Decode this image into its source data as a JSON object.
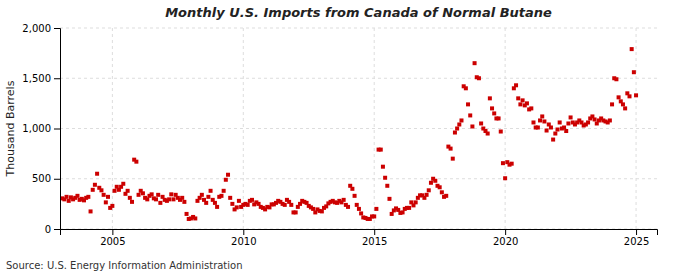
{
  "chart_data": {
    "type": "scatter",
    "title": "Monthly U.S. Imports from Canada of Normal Butane",
    "ylabel": "Thousand Barrels",
    "annotations": [
      "Source: U.S. Energy Information Administration"
    ],
    "color": "#cc0000",
    "marker": "square",
    "grid": true,
    "xlim": [
      2003.0,
      2025.8
    ],
    "xticks": [
      2005,
      2010,
      2015,
      2020,
      2025
    ],
    "ylim": [
      0,
      2000
    ],
    "yticks": [
      0,
      500,
      {
        "value": 1000,
        "label": "1,000"
      },
      {
        "value": 1500,
        "label": "1,500"
      },
      {
        "value": 2000,
        "label": "2,000"
      }
    ],
    "x": [
      2003.083,
      2003.167,
      2003.25,
      2003.333,
      2003.417,
      2003.5,
      2003.583,
      2003.667,
      2003.75,
      2003.833,
      2003.917,
      2004.0,
      2004.083,
      2004.167,
      2004.25,
      2004.333,
      2004.417,
      2004.5,
      2004.583,
      2004.667,
      2004.75,
      2004.833,
      2004.917,
      2005.0,
      2005.083,
      2005.167,
      2005.25,
      2005.333,
      2005.417,
      2005.5,
      2005.583,
      2005.667,
      2005.75,
      2005.833,
      2005.917,
      2006.0,
      2006.083,
      2006.167,
      2006.25,
      2006.333,
      2006.417,
      2006.5,
      2006.583,
      2006.667,
      2006.75,
      2006.833,
      2006.917,
      2007.0,
      2007.083,
      2007.167,
      2007.25,
      2007.333,
      2007.417,
      2007.5,
      2007.583,
      2007.667,
      2007.75,
      2007.833,
      2007.917,
      2008.0,
      2008.083,
      2008.167,
      2008.25,
      2008.333,
      2008.417,
      2008.5,
      2008.583,
      2008.667,
      2008.75,
      2008.833,
      2008.917,
      2009.0,
      2009.083,
      2009.167,
      2009.25,
      2009.333,
      2009.417,
      2009.5,
      2009.583,
      2009.667,
      2009.75,
      2009.833,
      2009.917,
      2010.0,
      2010.083,
      2010.167,
      2010.25,
      2010.333,
      2010.417,
      2010.5,
      2010.583,
      2010.667,
      2010.75,
      2010.833,
      2010.917,
      2011.0,
      2011.083,
      2011.167,
      2011.25,
      2011.333,
      2011.417,
      2011.5,
      2011.583,
      2011.667,
      2011.75,
      2011.833,
      2011.917,
      2012.0,
      2012.083,
      2012.167,
      2012.25,
      2012.333,
      2012.417,
      2012.5,
      2012.583,
      2012.667,
      2012.75,
      2012.833,
      2012.917,
      2013.0,
      2013.083,
      2013.167,
      2013.25,
      2013.333,
      2013.417,
      2013.5,
      2013.583,
      2013.667,
      2013.75,
      2013.833,
      2013.917,
      2014.0,
      2014.083,
      2014.167,
      2014.25,
      2014.333,
      2014.417,
      2014.5,
      2014.583,
      2014.667,
      2014.75,
      2014.833,
      2014.917,
      2015.0,
      2015.083,
      2015.167,
      2015.25,
      2015.333,
      2015.417,
      2015.5,
      2015.583,
      2015.667,
      2015.75,
      2015.833,
      2015.917,
      2016.0,
      2016.083,
      2016.167,
      2016.25,
      2016.333,
      2016.417,
      2016.5,
      2016.583,
      2016.667,
      2016.75,
      2016.833,
      2016.917,
      2017.0,
      2017.083,
      2017.167,
      2017.25,
      2017.333,
      2017.417,
      2017.5,
      2017.583,
      2017.667,
      2017.75,
      2017.833,
      2017.917,
      2018.0,
      2018.083,
      2018.167,
      2018.25,
      2018.333,
      2018.417,
      2018.5,
      2018.583,
      2018.667,
      2018.75,
      2018.833,
      2018.917,
      2019.0,
      2019.083,
      2019.167,
      2019.25,
      2019.333,
      2019.417,
      2019.5,
      2019.583,
      2019.667,
      2019.75,
      2019.833,
      2019.917,
      2020.0,
      2020.083,
      2020.167,
      2020.25,
      2020.333,
      2020.417,
      2020.5,
      2020.583,
      2020.667,
      2020.75,
      2020.833,
      2020.917,
      2021.0,
      2021.083,
      2021.167,
      2021.25,
      2021.333,
      2021.417,
      2021.5,
      2021.583,
      2021.667,
      2021.75,
      2021.833,
      2021.917,
      2022.0,
      2022.083,
      2022.167,
      2022.25,
      2022.333,
      2022.417,
      2022.5,
      2022.583,
      2022.667,
      2022.75,
      2022.833,
      2022.917,
      2023.0,
      2023.083,
      2023.167,
      2023.25,
      2023.333,
      2023.417,
      2023.5,
      2023.583,
      2023.667,
      2023.75,
      2023.833,
      2023.917,
      2024.0,
      2024.083,
      2024.167,
      2024.25,
      2024.333,
      2024.417,
      2024.5,
      2024.583,
      2024.667,
      2024.75,
      2024.833,
      2024.917,
      2025.0
    ],
    "values": [
      305,
      295,
      320,
      280,
      315,
      295,
      310,
      330,
      290,
      300,
      285,
      310,
      320,
      175,
      390,
      440,
      550,
      410,
      385,
      340,
      265,
      320,
      210,
      230,
      380,
      420,
      390,
      420,
      450,
      350,
      380,
      310,
      270,
      690,
      670,
      340,
      380,
      355,
      310,
      295,
      330,
      345,
      305,
      295,
      340,
      260,
      320,
      290,
      280,
      295,
      345,
      295,
      340,
      310,
      290,
      310,
      270,
      150,
      100,
      105,
      120,
      105,
      280,
      310,
      340,
      290,
      260,
      320,
      380,
      290,
      260,
      220,
      320,
      330,
      380,
      490,
      540,
      310,
      250,
      195,
      215,
      280,
      220,
      240,
      250,
      240,
      280,
      290,
      245,
      265,
      250,
      220,
      210,
      195,
      220,
      215,
      245,
      245,
      260,
      280,
      270,
      250,
      240,
      290,
      270,
      240,
      165,
      165,
      220,
      250,
      280,
      270,
      260,
      230,
      215,
      200,
      165,
      195,
      180,
      175,
      210,
      225,
      255,
      270,
      280,
      265,
      260,
      280,
      265,
      290,
      240,
      220,
      430,
      400,
      330,
      240,
      200,
      155,
      115,
      110,
      100,
      100,
      125,
      125,
      200,
      790,
      790,
      620,
      510,
      430,
      300,
      150,
      185,
      205,
      190,
      160,
      165,
      200,
      210,
      210,
      265,
      235,
      265,
      310,
      335,
      335,
      310,
      340,
      385,
      460,
      500,
      480,
      430,
      415,
      365,
      320,
      330,
      820,
      800,
      700,
      960,
      1000,
      1040,
      1080,
      1420,
      1400,
      1240,
      1130,
      1020,
      1650,
      1510,
      1500,
      1050,
      1000,
      975,
      950,
      1300,
      1200,
      1150,
      1100,
      1100,
      970,
      655,
      505,
      665,
      640,
      650,
      1400,
      1430,
      1300,
      1240,
      1280,
      1230,
      1250,
      1190,
      1200,
      1060,
      1010,
      1010,
      1080,
      1120,
      1070,
      980,
      1040,
      1010,
      890,
      950,
      990,
      1060,
      1000,
      1010,
      975,
      1050,
      1110,
      1060,
      1040,
      1060,
      1080,
      1060,
      1030,
      1040,
      1060,
      1100,
      1120,
      1090,
      1050,
      1080,
      1100,
      1080,
      1070,
      1060,
      1080,
      1240,
      1500,
      1490,
      1310,
      1270,
      1240,
      1200,
      1350,
      1320,
      1790,
      1560,
      1330
    ]
  }
}
